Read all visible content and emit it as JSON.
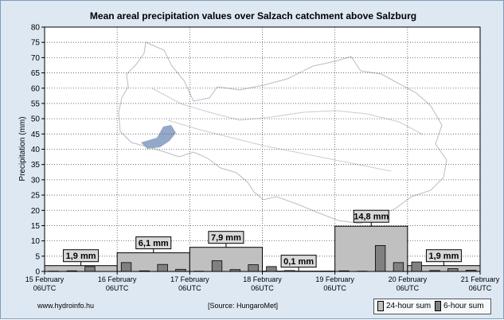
{
  "chart_data": {
    "type": "bar",
    "title": "Mean areal precipitation values over Salzach catchment above Salzburg",
    "ylabel": "Precipitation (mm)",
    "ylim": [
      0,
      80
    ],
    "yticks": [
      0,
      5,
      10,
      15,
      20,
      25,
      30,
      35,
      40,
      45,
      50,
      55,
      60,
      65,
      70,
      75,
      80
    ],
    "x_ticks": [
      {
        "line1": "15 February",
        "line2": "06UTC"
      },
      {
        "line1": "16 February",
        "line2": "06UTC"
      },
      {
        "line1": "17 February",
        "line2": "06UTC"
      },
      {
        "line1": "18 February",
        "line2": "06UTC"
      },
      {
        "line1": "19 February",
        "line2": "06UTC"
      },
      {
        "line1": "20 February",
        "line2": "06UTC"
      },
      {
        "line1": "21 February",
        "line2": "06UTC"
      }
    ],
    "grid": true,
    "series": [
      {
        "name": "24-hour sum",
        "color": "#c0c0c0",
        "values": [
          1.9,
          6.1,
          7.9,
          0.1,
          14.8,
          1.9
        ],
        "labels": [
          "1,9 mm",
          "6,1 mm",
          "7,9 mm",
          "0,1 mm",
          "14,8 mm",
          "1,9 mm"
        ]
      },
      {
        "name": "6-hour sum",
        "color": "#808080",
        "values": [
          0.1,
          0.2,
          1.6,
          0.0,
          2.9,
          0.2,
          2.3,
          0.7,
          0.1,
          3.5,
          0.6,
          2.2,
          1.6,
          0.3,
          0.0,
          0.1,
          0.2,
          0.1,
          8.5,
          2.9,
          3.1,
          0.3,
          0.9,
          0.4
        ]
      }
    ]
  },
  "footer": {
    "website": "www.hydroinfo.hu",
    "source": "[Source: HungaroMet]"
  },
  "legend": {
    "items": [
      {
        "label": "24-hour sum",
        "color": "#c0c0c0"
      },
      {
        "label": "6-hour sum",
        "color": "#808080"
      }
    ]
  }
}
